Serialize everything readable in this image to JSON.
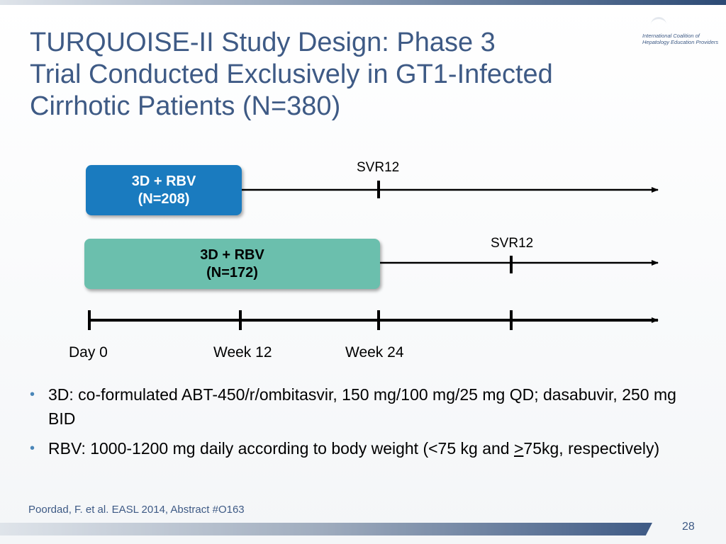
{
  "title_lines": [
    "TURQUOISE-II Study Design: Phase 3",
    "Trial Conducted Exclusively in GT1-Infected",
    "Cirrhotic Patients (N=380)"
  ],
  "logo": {
    "line1": "International Coalition of",
    "line2": "Hepatology Education Providers"
  },
  "arms": [
    {
      "line1": "3D + RBV",
      "line2": "(N=208)",
      "color": "#1a7bbf",
      "duration_weeks": 12
    },
    {
      "line1": "3D + RBV",
      "line2": "(N=172)",
      "color": "#6bbfad",
      "duration_weeks": 24
    }
  ],
  "svr_label": "SVR12",
  "timeline": {
    "labels": [
      "Day 0",
      "Week 12",
      "Week 24"
    ]
  },
  "bullets": {
    "b1": "3D: co-formulated ABT-450/r/ombitasvir, 150 mg/100 mg/25 mg QD; dasabuvir, 250 mg BID",
    "b2_part1": "RBV: 1000-1200 mg daily according to body weight (<75 kg and ",
    "b2_underlined": ">",
    "b2_part2": "75kg, respectively)"
  },
  "citation": "Poordad, F. et al. EASL 2014, Abstract #O163",
  "page_number": "28",
  "colors": {
    "title": "#3e5a85",
    "bullet": "#4a86b8"
  }
}
